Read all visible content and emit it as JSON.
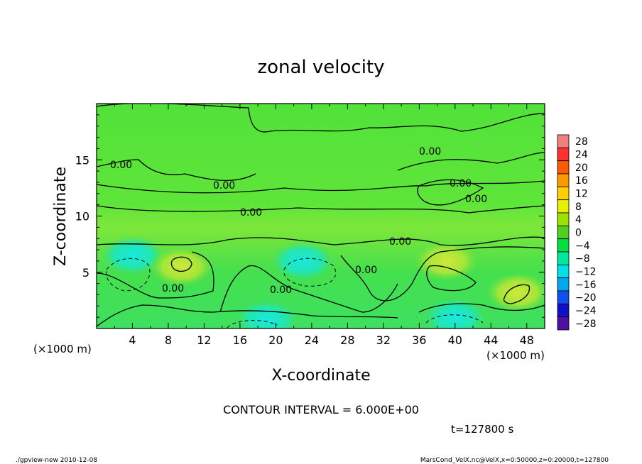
{
  "chart_data": {
    "type": "heatmap",
    "title": "zonal velocity",
    "xlabel": "X-coordinate",
    "ylabel": "Z-coordinate",
    "x_unit_note": "(×1000 m)",
    "y_unit_note": "(×1000 m)",
    "xlim": [
      0,
      50
    ],
    "ylim": [
      0,
      20
    ],
    "x_ticks": [
      4,
      8,
      12,
      16,
      20,
      24,
      28,
      32,
      36,
      40,
      44,
      48
    ],
    "y_ticks": [
      5,
      10,
      15
    ],
    "colorbar_levels": [
      28,
      24,
      20,
      16,
      12,
      8,
      4,
      0,
      -4,
      -8,
      -12,
      -16,
      -20,
      -24,
      -28
    ],
    "colorbar_colors": [
      "#f08080",
      "#ff3030",
      "#ff5a00",
      "#ff9900",
      "#ffd000",
      "#e6f000",
      "#a0e000",
      "#50d020",
      "#00e040",
      "#00e8a0",
      "#00e0e8",
      "#00a8f0",
      "#1050f0",
      "#1010c8",
      "#5010a0"
    ],
    "contour_label": "0.00",
    "contour_interval": "CONTOUR INTERVAL = 6.000E+00",
    "features": [
      {
        "x": 4,
        "z": 6.5,
        "sign": "negative"
      },
      {
        "x": 23,
        "z": 6.0,
        "sign": "negative"
      },
      {
        "x": 39,
        "z": 6.0,
        "sign": "positive"
      },
      {
        "x": 47,
        "z": 3.2,
        "sign": "positive"
      },
      {
        "x": 9.5,
        "z": 5.5,
        "sign": "positive"
      },
      {
        "x": 19,
        "z": 0.8,
        "sign": "negative"
      },
      {
        "x": 40,
        "z": 1.0,
        "sign": "negative"
      }
    ]
  },
  "time_label": "t=127800 s",
  "footer_left": "./gpview-new   2010-12-08",
  "footer_right": "MarsCond_VelX.nc@VelX,x=0:50000,z=0:20000,t=127800"
}
